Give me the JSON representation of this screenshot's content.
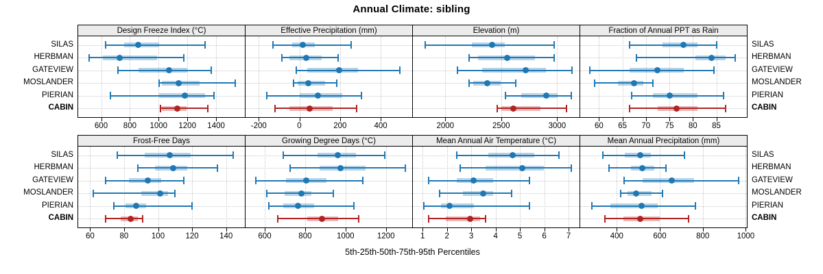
{
  "title": "Annual Climate: sibling",
  "xlabel": "5th-25th-50th-75th-95th Percentiles",
  "percentiles_shown": [
    5,
    25,
    50,
    75,
    95
  ],
  "sites": [
    "SILAS",
    "HERBMAN",
    "GATEVIEW",
    "MOSLANDER",
    "PIERIAN",
    "CABIN"
  ],
  "highlight_site": "CABIN",
  "colors": {
    "series_blue": "#1f78b4",
    "highlight_red": "#b22222",
    "band_alpha": 0.32,
    "header_bg": "#ececec",
    "grid": "#c6c6c6",
    "border": "#000000"
  },
  "chart_data": [
    {
      "type": "dotplot-percentiles",
      "title": "Design Freeze Index (°C)",
      "x_ticks": [
        600,
        800,
        1000,
        1200,
        1400
      ],
      "x_range": [
        440,
        1600
      ],
      "series": [
        {
          "name": "SILAS",
          "percentiles": [
            633,
            760,
            858,
            1003,
            1325
          ]
        },
        {
          "name": "HERBMAN",
          "percentiles": [
            515,
            610,
            727,
            987,
            1176
          ]
        },
        {
          "name": "GATEVIEW",
          "percentiles": [
            719,
            860,
            1070,
            1200,
            1364
          ]
        },
        {
          "name": "MOSLANDER",
          "percentiles": [
            1005,
            1020,
            1140,
            1285,
            1535
          ]
        },
        {
          "name": "PIERIAN",
          "percentiles": [
            665,
            1003,
            1180,
            1325,
            1385
          ]
        },
        {
          "name": "CABIN",
          "percentiles": [
            1014,
            1020,
            1130,
            1193,
            1342
          ]
        }
      ]
    },
    {
      "type": "dotplot-percentiles",
      "title": "Effective Precipitation (mm)",
      "x_ticks": [
        -200,
        0,
        200,
        400
      ],
      "x_range": [
        -265,
        555
      ],
      "series": [
        {
          "name": "SILAS",
          "percentiles": [
            -130,
            -35,
            15,
            75,
            255
          ]
        },
        {
          "name": "HERBMAN",
          "percentiles": [
            -85,
            -50,
            35,
            110,
            190
          ]
        },
        {
          "name": "GATEVIEW",
          "percentiles": [
            -15,
            40,
            195,
            290,
            495
          ]
        },
        {
          "name": "MOSLANDER",
          "percentiles": [
            -30,
            -10,
            45,
            125,
            185
          ]
        },
        {
          "name": "PIERIAN",
          "percentiles": [
            -160,
            0,
            90,
            210,
            305
          ]
        },
        {
          "name": "CABIN",
          "percentiles": [
            -120,
            -50,
            50,
            165,
            280
          ]
        }
      ]
    },
    {
      "type": "dotplot-percentiles",
      "title": "Elevation (m)",
      "x_ticks": [
        2000,
        2500,
        3000
      ],
      "x_range": [
        1710,
        3200
      ],
      "series": [
        {
          "name": "SILAS",
          "percentiles": [
            1820,
            2240,
            2415,
            2530,
            2970
          ]
        },
        {
          "name": "HERBMAN",
          "percentiles": [
            2210,
            2290,
            2555,
            2800,
            2975
          ]
        },
        {
          "name": "GATEVIEW",
          "percentiles": [
            2110,
            2330,
            2720,
            2900,
            3130
          ]
        },
        {
          "name": "MOSLANDER",
          "percentiles": [
            2215,
            2250,
            2375,
            2495,
            2630
          ]
        },
        {
          "name": "PIERIAN",
          "percentiles": [
            2535,
            2680,
            2900,
            3005,
            3125
          ]
        },
        {
          "name": "CABIN",
          "percentiles": [
            2465,
            2500,
            2605,
            2850,
            3085
          ]
        }
      ]
    },
    {
      "type": "dotplot-percentiles",
      "title": "Fraction of Annual PPT as Rain",
      "x_ticks": [
        60,
        65,
        70,
        75,
        80,
        85
      ],
      "x_range": [
        56,
        91.5
      ],
      "series": [
        {
          "name": "SILAS",
          "percentiles": [
            66.5,
            73.5,
            78,
            81,
            85
          ]
        },
        {
          "name": "HERBMAN",
          "percentiles": [
            68,
            80.5,
            84,
            87,
            89
          ]
        },
        {
          "name": "GATEVIEW",
          "percentiles": [
            58,
            66.5,
            72.5,
            78,
            84.5
          ]
        },
        {
          "name": "MOSLANDER",
          "percentiles": [
            59,
            64,
            67.5,
            69.5,
            71.5
          ]
        },
        {
          "name": "PIERIAN",
          "percentiles": [
            67,
            71.5,
            75,
            81,
            86.5
          ]
        },
        {
          "name": "CABIN",
          "percentiles": [
            66.5,
            72.5,
            76.5,
            81,
            87
          ]
        }
      ]
    },
    {
      "type": "dotplot-percentiles",
      "title": "Frost-Free Days",
      "x_ticks": [
        60,
        80,
        100,
        120,
        140
      ],
      "x_range": [
        53,
        151
      ],
      "series": [
        {
          "name": "SILAS",
          "percentiles": [
            76,
            92,
            107,
            119,
            144
          ]
        },
        {
          "name": "HERBMAN",
          "percentiles": [
            88,
            98,
            109,
            117,
            135
          ]
        },
        {
          "name": "GATEVIEW",
          "percentiles": [
            69,
            83,
            94,
            102,
            115
          ]
        },
        {
          "name": "MOSLANDER",
          "percentiles": [
            62,
            90,
            101,
            106,
            110
          ]
        },
        {
          "name": "PIERIAN",
          "percentiles": [
            74,
            81,
            87,
            93,
            120
          ]
        },
        {
          "name": "CABIN",
          "percentiles": [
            69,
            78,
            84,
            88,
            91
          ]
        }
      ]
    },
    {
      "type": "dotplot-percentiles",
      "title": "Growing Degree Days (°C)",
      "x_ticks": [
        600,
        800,
        1000,
        1200
      ],
      "x_range": [
        505,
        1330
      ],
      "series": [
        {
          "name": "SILAS",
          "percentiles": [
            690,
            860,
            960,
            1050,
            1195
          ]
        },
        {
          "name": "HERBMAN",
          "percentiles": [
            725,
            870,
            975,
            1100,
            1295
          ]
        },
        {
          "name": "GATEVIEW",
          "percentiles": [
            555,
            705,
            805,
            905,
            1085
          ]
        },
        {
          "name": "MOSLANDER",
          "percentiles": [
            610,
            700,
            780,
            830,
            940
          ]
        },
        {
          "name": "PIERIAN",
          "percentiles": [
            620,
            690,
            765,
            845,
            1040
          ]
        },
        {
          "name": "CABIN",
          "percentiles": [
            665,
            810,
            885,
            965,
            1065
          ]
        }
      ]
    },
    {
      "type": "dotplot-percentiles",
      "title": "Mean Annual Air Temperature (°C)",
      "x_ticks": [
        1,
        2,
        3,
        4,
        5,
        6,
        7
      ],
      "x_range": [
        0.6,
        7.45
      ],
      "series": [
        {
          "name": "SILAS",
          "percentiles": [
            2.4,
            3.7,
            4.7,
            5.6,
            6.6
          ]
        },
        {
          "name": "HERBMAN",
          "percentiles": [
            2.55,
            3.6,
            5.1,
            6.0,
            7.1
          ]
        },
        {
          "name": "GATEVIEW",
          "percentiles": [
            1.25,
            2.4,
            3.1,
            3.9,
            5.4
          ]
        },
        {
          "name": "MOSLANDER",
          "percentiles": [
            1.7,
            2.65,
            3.5,
            3.9,
            4.65
          ]
        },
        {
          "name": "PIERIAN",
          "percentiles": [
            1.05,
            1.75,
            2.1,
            3.1,
            5.4
          ]
        },
        {
          "name": "CABIN",
          "percentiles": [
            1.25,
            1.95,
            2.95,
            3.35,
            3.6
          ]
        }
      ]
    },
    {
      "type": "dotplot-percentiles",
      "title": "Mean Annual Precipitation (mm)",
      "x_ticks": [
        400,
        600,
        800,
        1000
      ],
      "x_range": [
        230,
        1005
      ],
      "series": [
        {
          "name": "SILAS",
          "percentiles": [
            336,
            437,
            509,
            560,
            714
          ]
        },
        {
          "name": "HERBMAN",
          "percentiles": [
            365,
            465,
            520,
            575,
            630
          ]
        },
        {
          "name": "GATEVIEW",
          "percentiles": [
            435,
            520,
            655,
            760,
            965
          ]
        },
        {
          "name": "MOSLANDER",
          "percentiles": [
            418,
            450,
            490,
            560,
            613
          ]
        },
        {
          "name": "PIERIAN",
          "percentiles": [
            285,
            370,
            515,
            590,
            765
          ]
        },
        {
          "name": "CABIN",
          "percentiles": [
            345,
            430,
            510,
            600,
            735
          ]
        }
      ]
    }
  ]
}
